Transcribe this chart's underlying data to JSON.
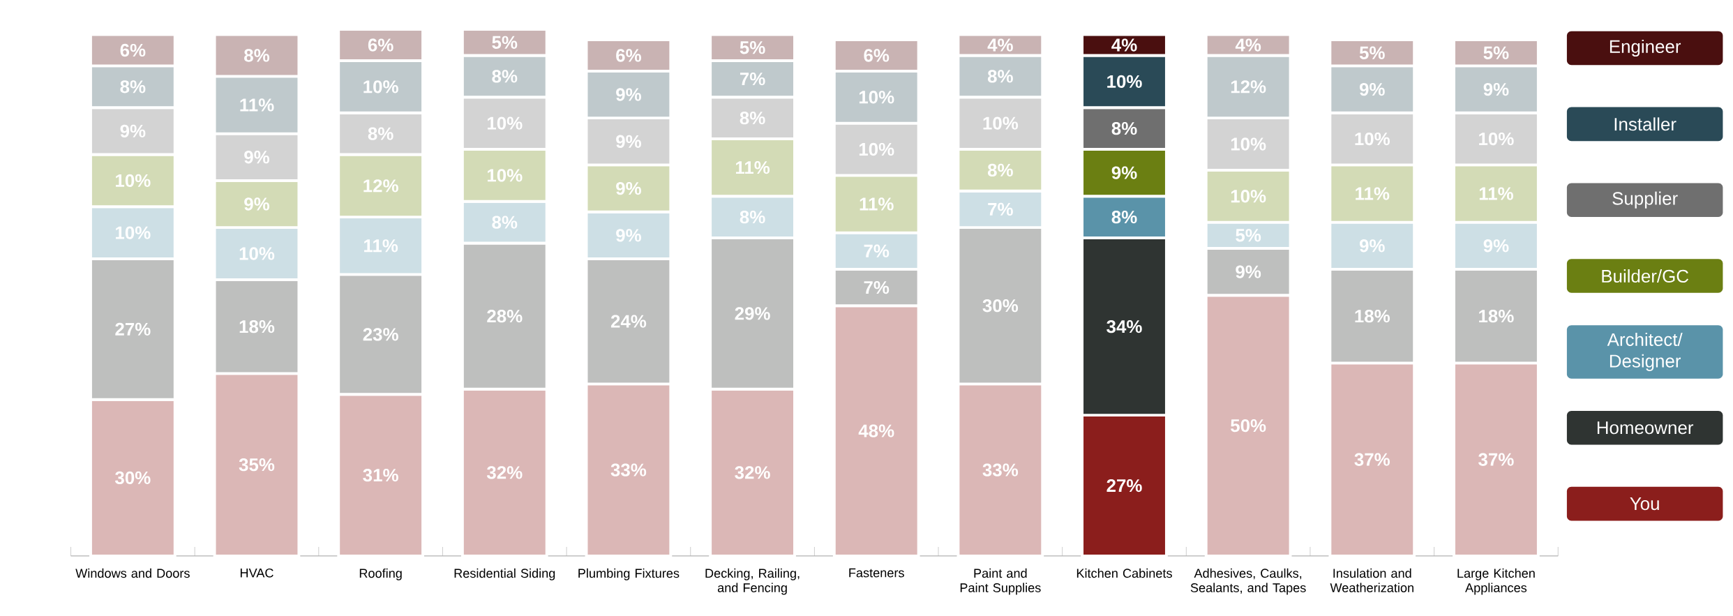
{
  "chart_data": {
    "type": "bar",
    "stacked": true,
    "legend": "right",
    "categories": [
      "Windows and Doors",
      "HVAC",
      "Roofing",
      "Residential Siding",
      "Plumbing Fixtures",
      "Decking, Railing, and Fencing",
      "Fasteners",
      "Paint and Paint Supplies",
      "Kitchen Cabinets",
      "Adhesives, Caulks, Sealants, and Tapes",
      "Insulation and Weatherization",
      "Large Kitchen Appliances"
    ],
    "series": [
      {
        "name": "You",
        "color": "#8b1e1c",
        "colors": [
          "#dbb7b6",
          "#dbb7b6",
          "#dbb7b6",
          "#dbb7b6",
          "#dbb7b6",
          "#dbb7b6",
          "#dbb7b6",
          "#dbb7b6",
          "#8b1e1c",
          "#dbb7b6",
          "#dbb7b6",
          "#dbb7b6"
        ],
        "values": [
          30,
          35,
          31,
          32,
          33,
          32,
          48,
          33,
          27,
          50,
          37,
          37
        ],
        "value_labels": [
          "30%",
          "35%",
          "31%",
          "32%",
          "33%",
          "32%",
          "48%",
          "33%",
          "27%",
          "50%",
          "37%",
          "37%"
        ]
      },
      {
        "name": "Homeowner",
        "color": "#2f3432",
        "colors": [
          "#bebfbe",
          "#bebfbe",
          "#bebfbe",
          "#bebfbe",
          "#bebfbe",
          "#bebfbe",
          "#bebfbe",
          "#bebfbe",
          "#2f3432",
          "#bebfbe",
          "#bebfbe",
          "#bebfbe"
        ],
        "values": [
          27,
          18,
          23,
          28,
          24,
          29,
          7,
          30,
          34,
          9,
          18,
          18
        ],
        "value_labels": [
          "27%",
          "18%",
          "23%",
          "28%",
          "24%",
          "29%",
          "7%",
          "30%",
          "34%",
          "9%",
          "18%",
          "18%"
        ]
      },
      {
        "name": "Architect/ Designer",
        "color": "#5a93a9",
        "colors": [
          "#cddfe5",
          "#cddfe5",
          "#cddfe5",
          "#cddfe5",
          "#cddfe5",
          "#cddfe5",
          "#cddfe5",
          "#cddfe5",
          "#5a93a9",
          "#cddfe5",
          "#cddfe5",
          "#cddfe5"
        ],
        "values": [
          10,
          10,
          11,
          8,
          9,
          8,
          7,
          7,
          8,
          5,
          9,
          9
        ],
        "value_labels": [
          "10%",
          "10%",
          "11%",
          "8%",
          "9%",
          "8%",
          "7%",
          "7%",
          "8%",
          "5%",
          "9%",
          "9%"
        ]
      },
      {
        "name": "Builder/GC",
        "color": "#6b7f12",
        "colors": [
          "#d3dbb6",
          "#d3dbb6",
          "#d3dbb6",
          "#d3dbb6",
          "#d3dbb6",
          "#d3dbb6",
          "#d3dbb6",
          "#d3dbb6",
          "#6b7f12",
          "#d3dbb6",
          "#d3dbb6",
          "#d3dbb6"
        ],
        "values": [
          10,
          9,
          12,
          10,
          9,
          11,
          11,
          8,
          9,
          10,
          11,
          11
        ],
        "value_labels": [
          "10%",
          "9%",
          "12%",
          "10%",
          "9%",
          "11%",
          "11%",
          "8%",
          "9%",
          "10%",
          "11%",
          "11%"
        ]
      },
      {
        "name": "Supplier",
        "color": "#6f6f6f",
        "colors": [
          "#d3d3d3",
          "#d3d3d3",
          "#d3d3d3",
          "#d3d3d3",
          "#d3d3d3",
          "#d3d3d3",
          "#d3d3d3",
          "#d3d3d3",
          "#6f6f6f",
          "#d3d3d3",
          "#d3d3d3",
          "#d3d3d3"
        ],
        "values": [
          9,
          9,
          8,
          10,
          9,
          8,
          10,
          10,
          8,
          10,
          10,
          10
        ],
        "value_labels": [
          "9%",
          "9%",
          "8%",
          "10%",
          "9%",
          "8%",
          "10%",
          "10%",
          "8%",
          "10%",
          "10%",
          "10%"
        ]
      },
      {
        "name": "Installer",
        "color": "#2a4a57",
        "colors": [
          "#bfc9cc",
          "#bfc9cc",
          "#bfc9cc",
          "#bfc9cc",
          "#bfc9cc",
          "#bfc9cc",
          "#bfc9cc",
          "#bfc9cc",
          "#2a4a57",
          "#bfc9cc",
          "#bfc9cc",
          "#bfc9cc"
        ],
        "values": [
          8,
          11,
          10,
          8,
          9,
          7,
          10,
          8,
          10,
          12,
          9,
          9
        ],
        "value_labels": [
          "8%",
          "11%",
          "10%",
          "8%",
          "9%",
          "7%",
          "10%",
          "8%",
          "10%",
          "12%",
          "9%",
          "9%"
        ]
      },
      {
        "name": "Engineer",
        "color": "#4a0f0f",
        "colors": [
          "#c9b3b3",
          "#c9b3b3",
          "#c9b3b3",
          "#c9b3b3",
          "#c9b3b3",
          "#c9b3b3",
          "#c9b3b3",
          "#c9b3b3",
          "#4a0f0f",
          "#c9b3b3",
          "#c9b3b3",
          "#c9b3b3"
        ],
        "values": [
          6,
          8,
          6,
          5,
          6,
          5,
          6,
          4,
          4,
          4,
          5,
          5
        ],
        "value_labels": [
          "6%",
          "8%",
          "6%",
          "5%",
          "6%",
          "5%",
          "6%",
          "4%",
          "4%",
          "4%",
          "5%",
          "5%"
        ]
      }
    ]
  }
}
